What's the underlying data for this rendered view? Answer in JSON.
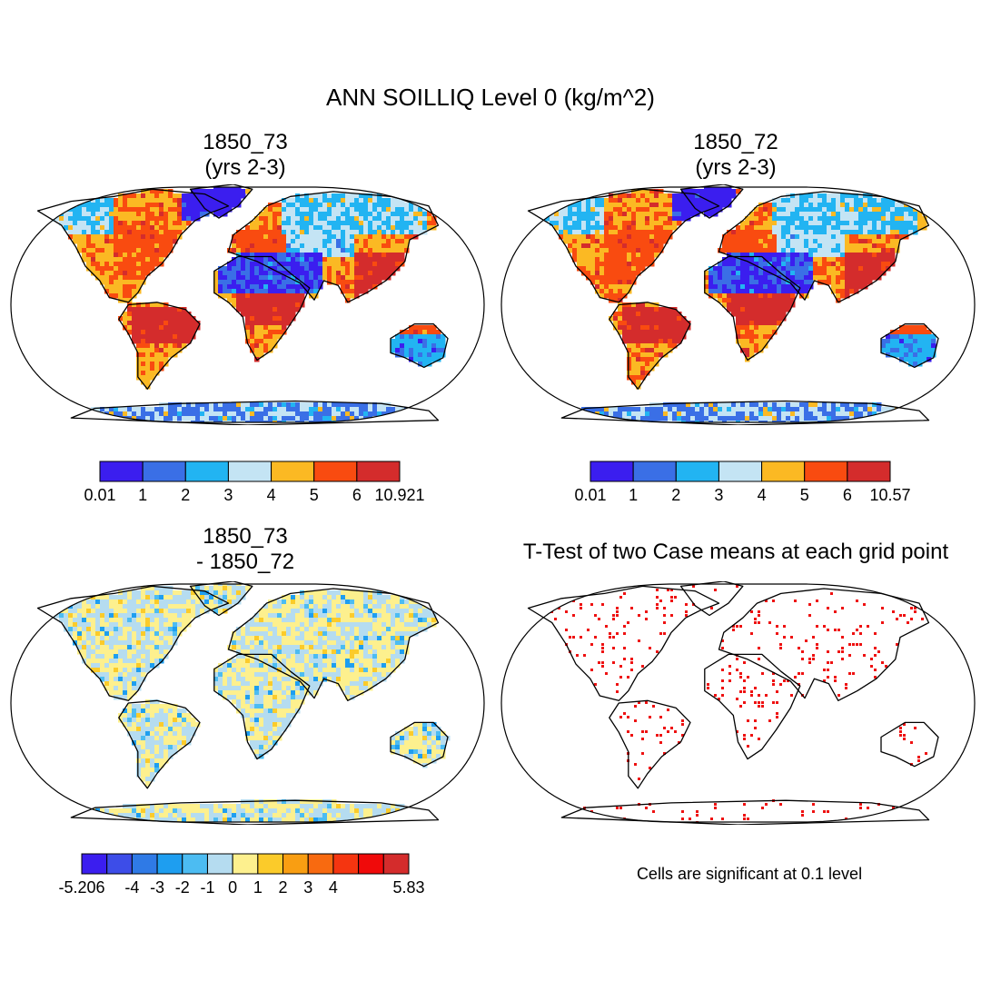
{
  "title": "ANN SOILLIQ Level 0 (kg/m^2)",
  "panels": [
    {
      "title_line1": "1850_73",
      "title_line2": "(yrs 2-3)",
      "fill": "wet",
      "colorbar": {
        "colors": [
          "#3b1eef",
          "#3a6fe6",
          "#22b4f2",
          "#c4e4f4",
          "#fbb923",
          "#f94b10",
          "#d42c2c"
        ],
        "labels": [
          "0.01",
          "1",
          "2",
          "3",
          "4",
          "5",
          "6",
          "10.921"
        ]
      }
    },
    {
      "title_line1": "1850_72",
      "title_line2": "(yrs 2-3)",
      "fill": "wet",
      "colorbar": {
        "colors": [
          "#3b1eef",
          "#3a6fe6",
          "#22b4f2",
          "#c4e4f4",
          "#fbb923",
          "#f94b10",
          "#d42c2c"
        ],
        "labels": [
          "0.01",
          "1",
          "2",
          "3",
          "4",
          "5",
          "6",
          "10.57"
        ]
      }
    },
    {
      "title_line1": "1850_73",
      "title_line2": "- 1850_72",
      "fill": "diff",
      "colorbar": {
        "colors": [
          "#3b1eef",
          "#3d4de8",
          "#2f7ae6",
          "#1e9ef0",
          "#4cbcf2",
          "#b5dcf0",
          "#fdf08e",
          "#fbcb2a",
          "#f99e12",
          "#f86a10",
          "#f53510",
          "#f00a0a",
          "#d42c2c"
        ],
        "labels": [
          "-5.206",
          "-4",
          "-3",
          "-2",
          "-1",
          "0",
          "1",
          "2",
          "3",
          "4",
          "5.83"
        ]
      }
    },
    {
      "title_line1": "T-Test of two Case means at each grid point",
      "note": "Cells are significant at 0.1 level",
      "fill": "ttest",
      "dot_color": "#ee1111"
    }
  ]
}
